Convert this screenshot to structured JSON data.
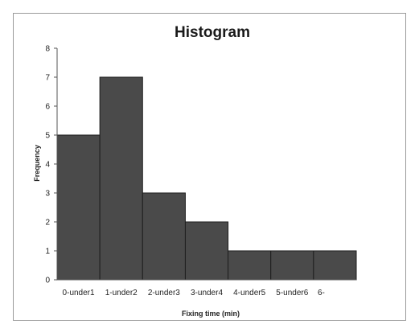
{
  "chart_data": {
    "type": "bar",
    "title": "Histogram",
    "xlabel": "Fixing time (min)",
    "ylabel": "Frequency",
    "categories": [
      "0-under1",
      "1-under2",
      "2-under3",
      "3-under4",
      "4-under5",
      "5-under6",
      "6-"
    ],
    "values": [
      5,
      7,
      3,
      2,
      1,
      1,
      1
    ],
    "ylim": [
      0,
      8
    ],
    "yticks": [
      "0",
      "1",
      "2",
      "3",
      "4",
      "5",
      "6",
      "7",
      "8"
    ],
    "grid": false,
    "legend": "none",
    "colors": {
      "bar": "#4a4a4a",
      "bar_edge": "#1e1e1e",
      "axis": "#555555"
    }
  }
}
